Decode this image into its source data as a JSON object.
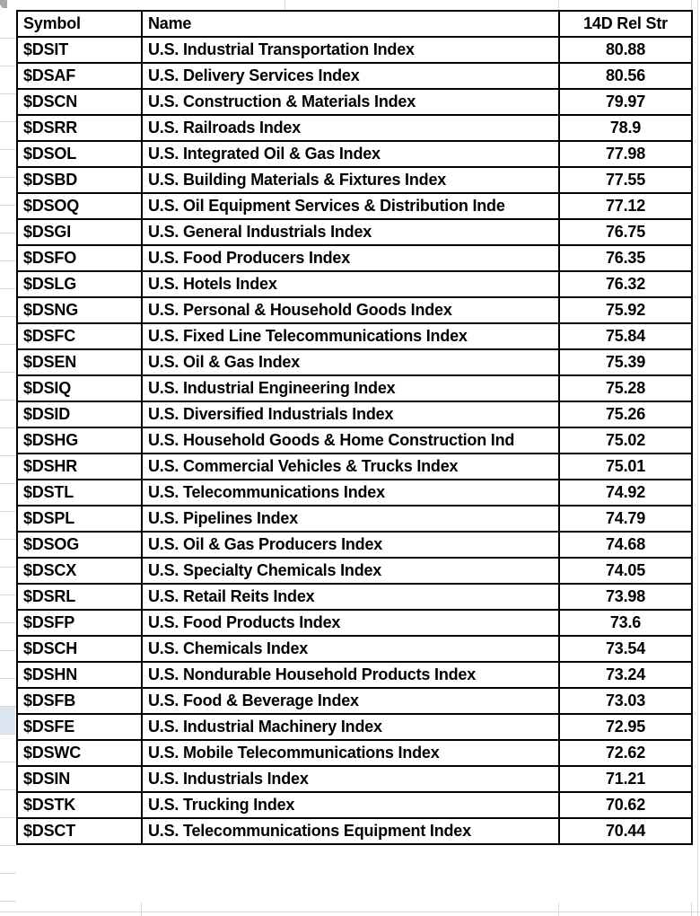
{
  "colors": {
    "table_border": "#000000",
    "text": "#000000",
    "faint_gridline": "#d9d9d9",
    "strip_highlight": "#dce6f1",
    "corner_mark": "#a9a9a9",
    "background": "#ffffff"
  },
  "left_strip": {
    "highlight_row_index": 24
  },
  "chart_data": {
    "type": "table",
    "title": "",
    "columns": [
      {
        "key": "symbol",
        "label": "Symbol",
        "align": "left"
      },
      {
        "key": "name",
        "label": "Name",
        "align": "left"
      },
      {
        "key": "rel_str",
        "label": "14D Rel Str",
        "align": "center"
      }
    ],
    "rows": [
      {
        "symbol": "$DSIT",
        "name": "U.S. Industrial Transportation Index",
        "rel_str": "80.88"
      },
      {
        "symbol": "$DSAF",
        "name": "U.S. Delivery Services Index",
        "rel_str": "80.56"
      },
      {
        "symbol": "$DSCN",
        "name": "U.S. Construction & Materials Index",
        "rel_str": "79.97"
      },
      {
        "symbol": "$DSRR",
        "name": "U.S. Railroads Index",
        "rel_str": "78.9"
      },
      {
        "symbol": "$DSOL",
        "name": "U.S. Integrated Oil & Gas Index",
        "rel_str": "77.98"
      },
      {
        "symbol": "$DSBD",
        "name": "U.S. Building Materials & Fixtures Index",
        "rel_str": "77.55"
      },
      {
        "symbol": "$DSOQ",
        "name": "U.S. Oil Equipment Services & Distribution Inde",
        "rel_str": "77.12"
      },
      {
        "symbol": "$DSGI",
        "name": "U.S. General Industrials Index",
        "rel_str": "76.75"
      },
      {
        "symbol": "$DSFO",
        "name": "U.S. Food Producers Index",
        "rel_str": "76.35"
      },
      {
        "symbol": "$DSLG",
        "name": "U.S. Hotels Index",
        "rel_str": "76.32"
      },
      {
        "symbol": "$DSNG",
        "name": "U.S. Personal & Household Goods Index",
        "rel_str": "75.92"
      },
      {
        "symbol": "$DSFC",
        "name": "U.S. Fixed Line Telecommunications Index",
        "rel_str": "75.84"
      },
      {
        "symbol": "$DSEN",
        "name": "U.S. Oil & Gas Index",
        "rel_str": "75.39"
      },
      {
        "symbol": "$DSIQ",
        "name": "U.S. Industrial Engineering Index",
        "rel_str": "75.28"
      },
      {
        "symbol": "$DSID",
        "name": "U.S. Diversified Industrials Index",
        "rel_str": "75.26"
      },
      {
        "symbol": "$DSHG",
        "name": "U.S. Household Goods & Home Construction Ind",
        "rel_str": "75.02"
      },
      {
        "symbol": "$DSHR",
        "name": "U.S. Commercial Vehicles & Trucks Index",
        "rel_str": "75.01"
      },
      {
        "symbol": "$DSTL",
        "name": "U.S. Telecommunications Index",
        "rel_str": "74.92"
      },
      {
        "symbol": "$DSPL",
        "name": "U.S. Pipelines Index",
        "rel_str": "74.79"
      },
      {
        "symbol": "$DSOG",
        "name": "U.S. Oil & Gas Producers Index",
        "rel_str": "74.68"
      },
      {
        "symbol": "$DSCX",
        "name": "U.S. Specialty Chemicals Index",
        "rel_str": "74.05"
      },
      {
        "symbol": "$DSRL",
        "name": "U.S. Retail Reits Index",
        "rel_str": "73.98"
      },
      {
        "symbol": "$DSFP",
        "name": "U.S. Food Products Index",
        "rel_str": "73.6"
      },
      {
        "symbol": "$DSCH",
        "name": "U.S. Chemicals Index",
        "rel_str": "73.54"
      },
      {
        "symbol": "$DSHN",
        "name": "U.S. Nondurable Household Products Index",
        "rel_str": "73.24"
      },
      {
        "symbol": "$DSFB",
        "name": "U.S. Food & Beverage Index",
        "rel_str": "73.03"
      },
      {
        "symbol": "$DSFE",
        "name": "U.S. Industrial Machinery Index",
        "rel_str": "72.95"
      },
      {
        "symbol": "$DSWC",
        "name": "U.S. Mobile Telecommunications Index",
        "rel_str": "72.62"
      },
      {
        "symbol": "$DSIN",
        "name": "U.S. Industrials Index",
        "rel_str": "71.21"
      },
      {
        "symbol": "$DSTK",
        "name": "U.S. Trucking Index",
        "rel_str": "70.62"
      },
      {
        "symbol": "$DSCT",
        "name": "U.S. Telecommunications Equipment Index",
        "rel_str": "70.44"
      }
    ]
  }
}
